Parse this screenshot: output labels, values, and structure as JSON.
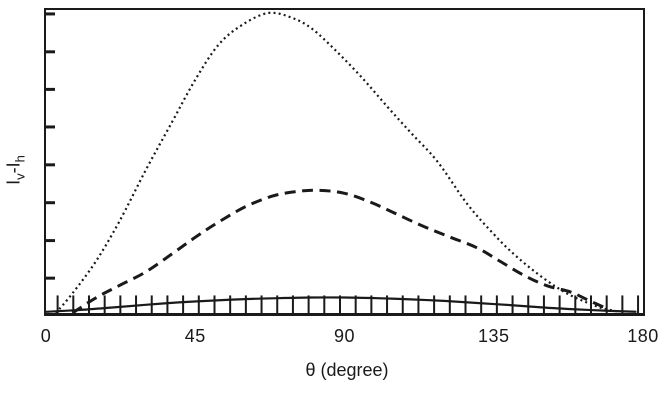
{
  "figure": {
    "background": "#ffffff",
    "ink_color": "#1a1a1a"
  },
  "axes": {
    "xlabel": "θ (degree)",
    "ylabel_parts": {
      "i1": "I",
      "sub1": "v",
      "sep": "-",
      "i2": "I",
      "sub2": "h"
    }
  },
  "chart_data": {
    "type": "line",
    "title": "",
    "xlabel": "θ (degree)",
    "ylabel": "Iv-Ih",
    "xlim": [
      0,
      180
    ],
    "ylim_note": "y axis unlabeled (arbitrary units), normalized 0-1 of full plot height",
    "grid": false,
    "legend": "none",
    "x_ticks": [
      {
        "deg": 0,
        "label": "0"
      },
      {
        "deg": 45,
        "label": "45"
      },
      {
        "deg": 90,
        "label": "90"
      },
      {
        "deg": 135,
        "label": "135"
      },
      {
        "deg": 180,
        "label": "180"
      }
    ],
    "y_minor_ticks": {
      "side": "left-inward",
      "fractions": [
        0.115,
        0.239,
        0.364,
        0.489,
        0.614,
        0.738,
        0.862,
        0.987
      ]
    },
    "x_minor_ticks": {
      "side": "bottom-inward",
      "start_deg": 3.5,
      "step_deg": 4.73,
      "count": 38,
      "height_fraction": 0.058
    },
    "series": [
      {
        "name": "dotted-curve",
        "style": "dotted",
        "points": [
          [
            3,
            0
          ],
          [
            8,
            0.065
          ],
          [
            15,
            0.17
          ],
          [
            22,
            0.3
          ],
          [
            30,
            0.47
          ],
          [
            38,
            0.63
          ],
          [
            45,
            0.77
          ],
          [
            52,
            0.885
          ],
          [
            59,
            0.95
          ],
          [
            67,
            0.99
          ],
          [
            74,
            0.975
          ],
          [
            80,
            0.94
          ],
          [
            87,
            0.87
          ],
          [
            95,
            0.78
          ],
          [
            103,
            0.68
          ],
          [
            110,
            0.595
          ],
          [
            118,
            0.5
          ],
          [
            127,
            0.36
          ],
          [
            135,
            0.26
          ],
          [
            142,
            0.185
          ],
          [
            150,
            0.115
          ],
          [
            157,
            0.065
          ],
          [
            163,
            0.035
          ],
          [
            168,
            0.015
          ],
          [
            173,
            0.004
          ]
        ]
      },
      {
        "name": "dashed-curve",
        "style": "dashed",
        "points": [
          [
            8,
            0
          ],
          [
            15,
            0.05
          ],
          [
            22,
            0.09
          ],
          [
            30,
            0.135
          ],
          [
            38,
            0.195
          ],
          [
            45,
            0.25
          ],
          [
            52,
            0.3
          ],
          [
            60,
            0.35
          ],
          [
            68,
            0.385
          ],
          [
            75,
            0.4
          ],
          [
            82,
            0.405
          ],
          [
            90,
            0.395
          ],
          [
            98,
            0.365
          ],
          [
            106,
            0.325
          ],
          [
            114,
            0.285
          ],
          [
            122,
            0.25
          ],
          [
            130,
            0.215
          ],
          [
            137,
            0.17
          ],
          [
            144,
            0.125
          ],
          [
            151,
            0.09
          ],
          [
            158,
            0.07
          ],
          [
            163,
            0.045
          ],
          [
            168,
            0.02
          ]
        ]
      },
      {
        "name": "solid-curve",
        "style": "solid",
        "points": [
          [
            0,
            0.004
          ],
          [
            10,
            0.01
          ],
          [
            20,
            0.018
          ],
          [
            30,
            0.027
          ],
          [
            40,
            0.035
          ],
          [
            50,
            0.041
          ],
          [
            60,
            0.046
          ],
          [
            70,
            0.049
          ],
          [
            80,
            0.051
          ],
          [
            90,
            0.051
          ],
          [
            100,
            0.049
          ],
          [
            110,
            0.045
          ],
          [
            120,
            0.04
          ],
          [
            130,
            0.033
          ],
          [
            140,
            0.026
          ],
          [
            150,
            0.018
          ],
          [
            160,
            0.012
          ],
          [
            170,
            0.007
          ],
          [
            178,
            0.004
          ]
        ]
      }
    ]
  }
}
